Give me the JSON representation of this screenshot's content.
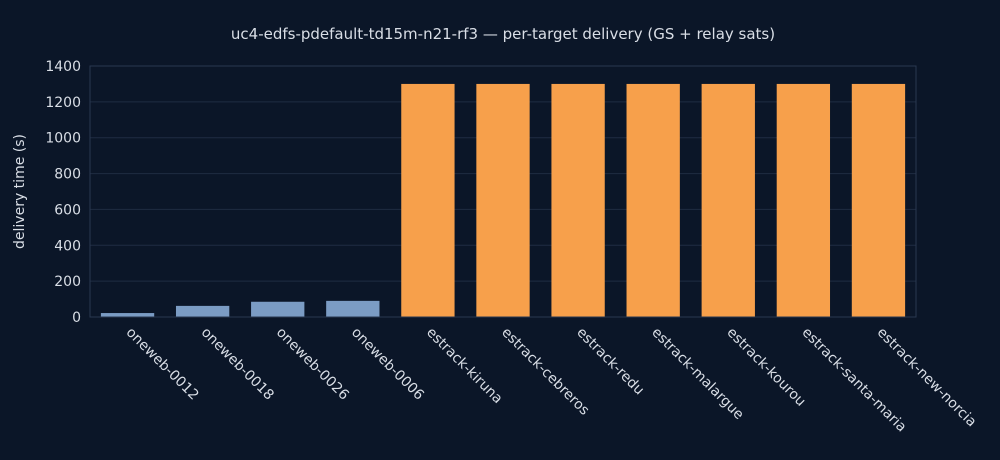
{
  "chart_data": {
    "type": "bar",
    "title": "uc4-edfs-pdefault-td15m-n21-rf3 — per-target delivery (GS + relay sats)",
    "xlabel": "",
    "ylabel": "delivery time (s)",
    "ylim": [
      0,
      1400
    ],
    "yticks": [
      0,
      200,
      400,
      600,
      800,
      1000,
      1200,
      1400
    ],
    "grid": true,
    "categories": [
      "oneweb-0012",
      "oneweb-0018",
      "oneweb-0026",
      "oneweb-0006",
      "estrack-kiruna",
      "estrack-cebreros",
      "estrack-redu",
      "estrack-malargue",
      "estrack-kourou",
      "estrack-santa-maria",
      "estrack-new-norcia"
    ],
    "values": [
      22,
      62,
      85,
      90,
      1300,
      1300,
      1300,
      1300,
      1300,
      1300,
      1300
    ],
    "colors": [
      "#7b9cc4",
      "#7b9cc4",
      "#7b9cc4",
      "#7b9cc4",
      "#f7a04b",
      "#f7a04b",
      "#f7a04b",
      "#f7a04b",
      "#f7a04b",
      "#f7a04b",
      "#f7a04b"
    ]
  }
}
